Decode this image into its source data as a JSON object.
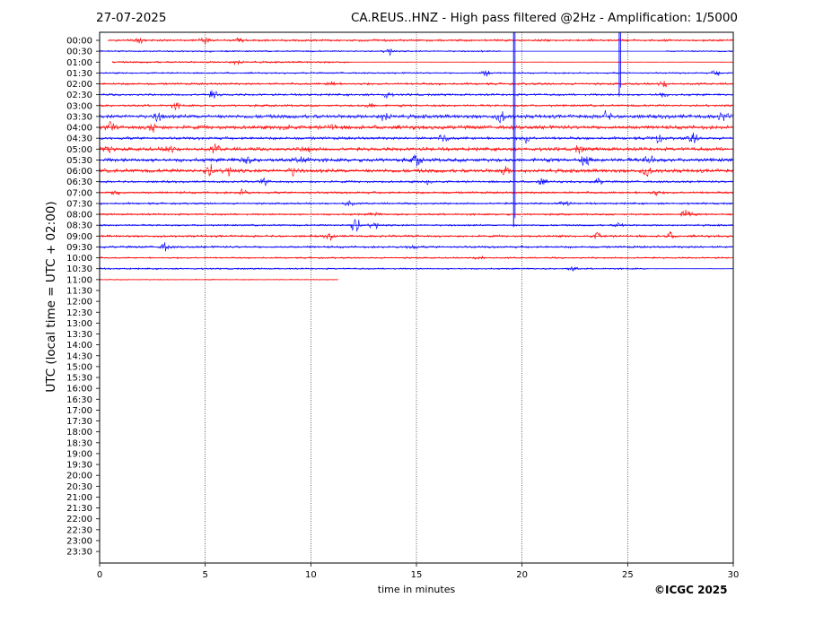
{
  "header": {
    "date": "27-07-2025",
    "station_title": "CA.REUS..HNZ - High pass filtered @2Hz - Amplification: 1/5000"
  },
  "footer": {
    "copyright": "©ICGC 2025"
  },
  "chart_data": {
    "type": "line",
    "title": "CA.REUS..HNZ - High pass filtered @2Hz - Amplification: 1/5000",
    "xlabel": "time in minutes",
    "ylabel": "UTC (local time = UTC + 02:00)",
    "xlim": [
      0,
      30
    ],
    "x_ticks": [
      0,
      5,
      10,
      15,
      20,
      25,
      30
    ],
    "vertical_gridlines_at": [
      5,
      10,
      15,
      20,
      25
    ],
    "grid": "dotted vertical",
    "row_labels": [
      "00:00",
      "00:30",
      "01:00",
      "01:30",
      "02:00",
      "02:30",
      "03:00",
      "03:30",
      "04:00",
      "04:30",
      "05:00",
      "05:30",
      "06:00",
      "06:30",
      "07:00",
      "07:30",
      "08:00",
      "08:30",
      "09:00",
      "09:30",
      "10:00",
      "10:30",
      "11:00",
      "11:30",
      "12:00",
      "12:30",
      "13:00",
      "13:30",
      "14:00",
      "14:30",
      "15:00",
      "15:30",
      "16:00",
      "16:30",
      "17:00",
      "17:30",
      "18:00",
      "18:30",
      "19:00",
      "19:30",
      "20:00",
      "20:30",
      "21:00",
      "21:30",
      "22:00",
      "22:30",
      "23:00",
      "23:30"
    ],
    "trace_colors": [
      "#ff0000",
      "#0000ff"
    ],
    "traces": [
      {
        "row": "00:00",
        "color": "#ff0000",
        "start": 0.4,
        "end": 30,
        "level": 0.35,
        "bursts": [
          [
            5.0,
            0.8
          ],
          [
            1.9,
            0.6
          ],
          [
            6.6,
            0.5
          ]
        ]
      },
      {
        "row": "00:30",
        "color": "#0000ff",
        "start": 0,
        "end": 30,
        "level": 0.25,
        "bursts": [
          [
            13.7,
            0.8
          ]
        ],
        "gaps": [
          [
            19.0,
            26.8
          ]
        ]
      },
      {
        "row": "01:00",
        "color": "#ff0000",
        "start": 0.6,
        "end": 30,
        "level": 0.3,
        "bursts": [
          [
            6.5,
            0.6
          ]
        ],
        "quiet": [
          [
            11.8,
            30
          ]
        ]
      },
      {
        "row": "01:30",
        "color": "#0000ff",
        "start": 0,
        "end": 30,
        "level": 0.25,
        "bursts": [
          [
            18.3,
            0.7
          ],
          [
            29.2,
            0.5
          ]
        ]
      },
      {
        "row": "02:00",
        "color": "#ff0000",
        "start": 0,
        "end": 30,
        "level": 0.35,
        "bursts": [
          [
            11.0,
            0.6
          ],
          [
            26.7,
            0.6
          ]
        ]
      },
      {
        "row": "02:30",
        "color": "#0000ff",
        "start": 0,
        "end": 30,
        "level": 0.35,
        "bursts": [
          [
            5.4,
            0.8
          ],
          [
            13.6,
            0.6
          ],
          [
            26.6,
            0.5
          ]
        ]
      },
      {
        "row": "03:00",
        "color": "#ff0000",
        "start": 0,
        "end": 30,
        "level": 0.35,
        "bursts": [
          [
            3.6,
            0.6
          ],
          [
            12.8,
            0.5
          ]
        ]
      },
      {
        "row": "03:30",
        "color": "#0000ff",
        "start": 0,
        "end": 30,
        "level": 0.6,
        "bursts": [
          [
            2.8,
            0.9
          ],
          [
            13.5,
            1.0
          ],
          [
            19.0,
            1.0
          ],
          [
            24.0,
            0.8
          ],
          [
            29.5,
            0.8
          ]
        ]
      },
      {
        "row": "04:00",
        "color": "#ff0000",
        "start": 0,
        "end": 30,
        "level": 0.6,
        "bursts": [
          [
            0.5,
            0.8
          ],
          [
            2.5,
            0.9
          ],
          [
            8.8,
            0.7
          ],
          [
            11.0,
            0.6
          ]
        ]
      },
      {
        "row": "04:30",
        "color": "#0000ff",
        "start": 0,
        "end": 30,
        "level": 0.45,
        "bursts": [
          [
            16.3,
            0.7
          ],
          [
            20.2,
            0.9
          ],
          [
            26.4,
            0.8
          ],
          [
            28.1,
            1.0
          ]
        ]
      },
      {
        "row": "05:00",
        "color": "#ff0000",
        "start": 0,
        "end": 30,
        "level": 0.55,
        "bursts": [
          [
            0.3,
            0.7
          ],
          [
            3.3,
            0.8
          ],
          [
            5.5,
            0.7
          ],
          [
            9.8,
            0.6
          ],
          [
            22.7,
            0.6
          ]
        ]
      },
      {
        "row": "05:30",
        "color": "#0000ff",
        "start": 0,
        "end": 30,
        "level": 0.6,
        "bursts": [
          [
            6.9,
            1.0
          ],
          [
            9.6,
            0.9
          ],
          [
            15.0,
            0.9
          ],
          [
            23.0,
            1.0
          ],
          [
            26.0,
            1.0
          ]
        ]
      },
      {
        "row": "06:00",
        "color": "#ff0000",
        "start": 0,
        "end": 30,
        "level": 0.6,
        "bursts": [
          [
            5.2,
            1.1
          ],
          [
            6.1,
            0.9
          ],
          [
            9.2,
            0.8
          ],
          [
            19.2,
            0.7
          ],
          [
            25.9,
            0.8
          ]
        ]
      },
      {
        "row": "06:30",
        "color": "#0000ff",
        "start": 0,
        "end": 30,
        "level": 0.35,
        "bursts": [
          [
            7.8,
            0.6
          ],
          [
            15.6,
            0.5
          ],
          [
            20.9,
            0.7
          ],
          [
            23.6,
            0.6
          ]
        ]
      },
      {
        "row": "07:00",
        "color": "#ff0000",
        "start": 0,
        "end": 30,
        "level": 0.35,
        "bursts": [
          [
            0.8,
            0.6
          ],
          [
            6.8,
            0.7
          ],
          [
            26.3,
            0.5
          ]
        ]
      },
      {
        "row": "07:30",
        "color": "#0000ff",
        "start": 0,
        "end": 30,
        "level": 0.3,
        "bursts": [
          [
            11.8,
            0.6
          ],
          [
            22.0,
            0.7
          ]
        ]
      },
      {
        "row": "08:00",
        "color": "#ff0000",
        "start": 0,
        "end": 30,
        "level": 0.3,
        "bursts": [
          [
            27.8,
            1.2
          ],
          [
            13.0,
            0.4
          ]
        ]
      },
      {
        "row": "08:30",
        "color": "#0000ff",
        "start": 0,
        "end": 30,
        "level": 0.3,
        "bursts": [
          [
            12.1,
            1.8
          ],
          [
            13.0,
            0.8
          ],
          [
            24.6,
            0.5
          ]
        ]
      },
      {
        "row": "09:00",
        "color": "#ff0000",
        "start": 0,
        "end": 30,
        "level": 0.35,
        "bursts": [
          [
            10.9,
            0.6
          ],
          [
            23.6,
            0.7
          ],
          [
            27.0,
            0.6
          ]
        ]
      },
      {
        "row": "09:30",
        "color": "#0000ff",
        "start": 0,
        "end": 30,
        "level": 0.35,
        "bursts": [
          [
            3.1,
            0.8
          ],
          [
            14.8,
            0.5
          ]
        ]
      },
      {
        "row": "10:00",
        "color": "#ff0000",
        "start": 0,
        "end": 30,
        "level": 0.25,
        "bursts": [
          [
            18.0,
            0.4
          ]
        ]
      },
      {
        "row": "10:30",
        "color": "#0000ff",
        "start": 0,
        "end": 30,
        "level": 0.25,
        "bursts": [
          [
            22.4,
            0.5
          ]
        ],
        "quiet": [
          [
            26.0,
            30
          ]
        ]
      },
      {
        "row": "11:00",
        "color": "#ff0000",
        "start": 0,
        "end": 11.3,
        "level": 0.15,
        "bursts": []
      }
    ],
    "spikes": [
      {
        "minute": 19.6,
        "color": "#0000ff",
        "from_row": "00:00",
        "to_row": "08:30"
      },
      {
        "minute": 24.6,
        "color": "#0000ff",
        "from_row": "00:00",
        "to_row": "02:30"
      }
    ]
  }
}
